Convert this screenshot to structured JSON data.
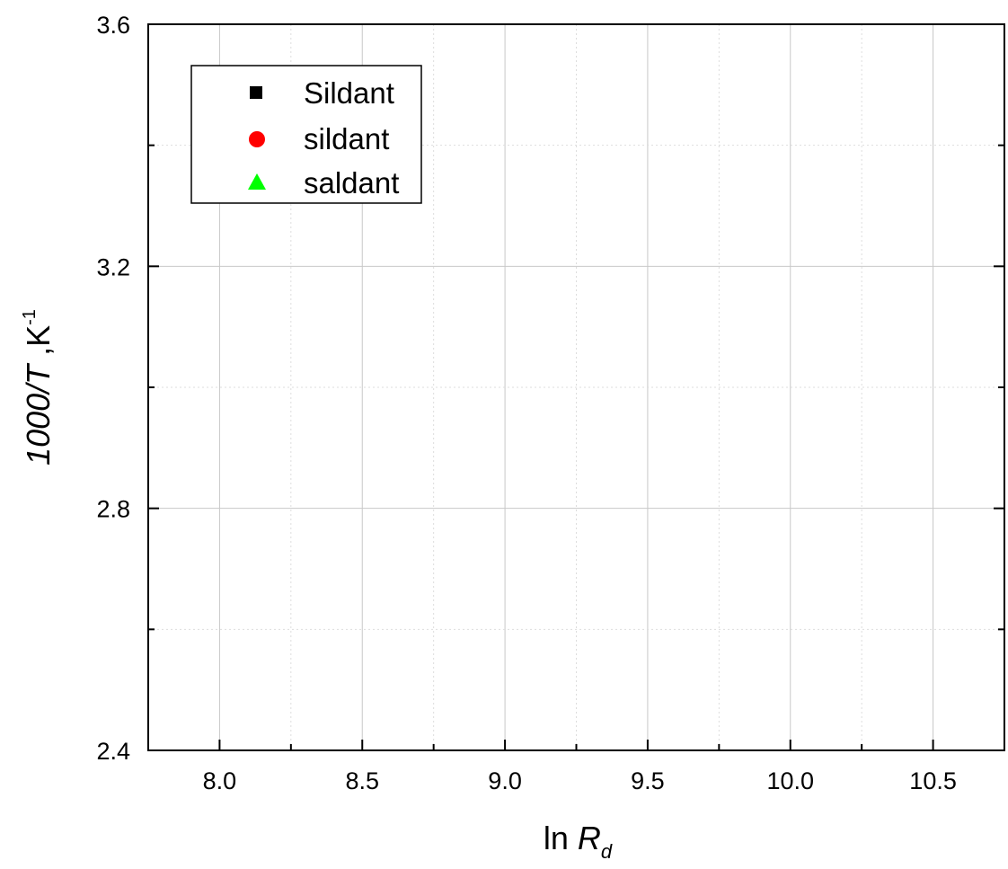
{
  "chart_data": {
    "type": "scatter",
    "xlabel_prefix": "ln ",
    "xlabel_var": "R",
    "xlabel_sub": "d",
    "ylabel_var": "1000/T",
    "ylabel_unit": " ,K",
    "ylabel_sup": "-1",
    "xlim": [
      7.75,
      10.75
    ],
    "ylim": [
      2.4,
      3.6
    ],
    "x_ticks": [
      8.0,
      8.5,
      9.0,
      9.5,
      10.0,
      10.5
    ],
    "x_tick_labels": [
      "8.0",
      "8.5",
      "9.0",
      "9.5",
      "10.0",
      "10.5"
    ],
    "x_minor_ticks": [
      8.25,
      8.75,
      9.25,
      9.75,
      10.25,
      10.75
    ],
    "y_ticks": [
      2.4,
      2.8,
      3.2,
      3.6
    ],
    "y_tick_labels": [
      "2.4",
      "2.8",
      "3.2",
      "3.6"
    ],
    "y_minor_ticks": [
      2.6,
      3.0,
      3.4
    ],
    "grid": true,
    "legend_position": "top-left",
    "series": [
      {
        "name": "Sildant",
        "marker": "square",
        "color": "#000000",
        "x": [],
        "y": []
      },
      {
        "name": "sildant",
        "marker": "circle",
        "color": "#ff0000",
        "x": [],
        "y": []
      },
      {
        "name": "saldant",
        "marker": "triangle",
        "color": "#00ff00",
        "x": [],
        "y": []
      }
    ]
  }
}
